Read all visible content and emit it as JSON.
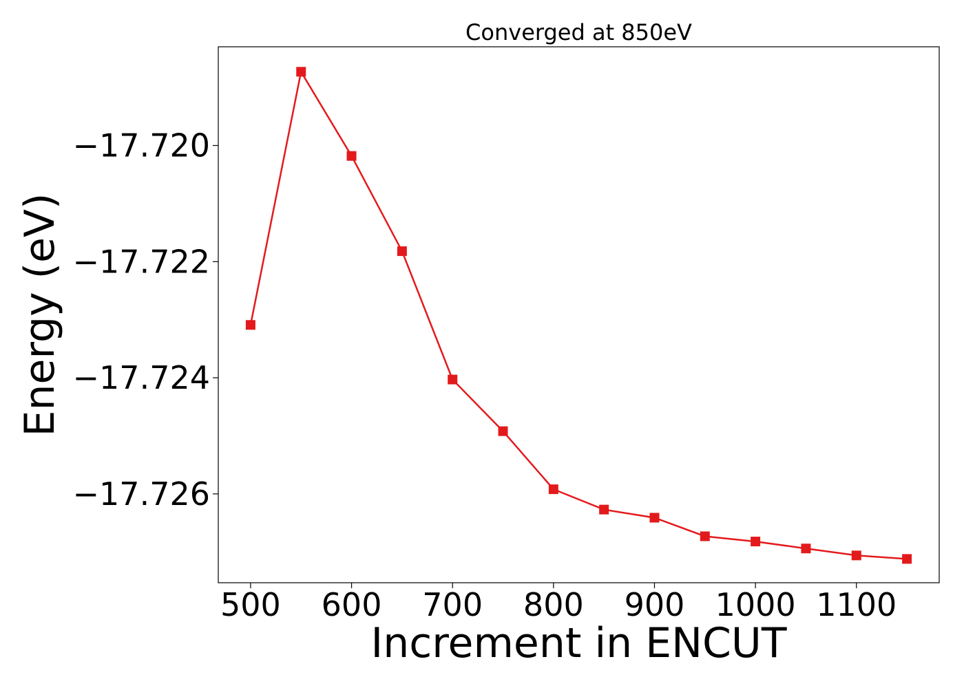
{
  "chart_data": {
    "type": "line",
    "title": "Converged at 850eV",
    "xlabel": "Increment in ENCUT",
    "ylabel": "Energy (eV)",
    "xlim": [
      468,
      1182
    ],
    "ylim": [
      -17.72753,
      -17.7183
    ],
    "x_ticks": [
      500,
      600,
      700,
      800,
      900,
      1000,
      1100
    ],
    "x_tick_labels": [
      "500",
      "600",
      "700",
      "800",
      "900",
      "1000",
      "1100"
    ],
    "y_ticks": [
      -17.72,
      -17.722,
      -17.724,
      -17.726
    ],
    "y_tick_labels": [
      "−17.720",
      "−17.722",
      "−17.724",
      "−17.726"
    ],
    "grid": false,
    "series": [
      {
        "color": "#e31a1c",
        "marker": "square",
        "x": [
          500,
          550,
          600,
          650,
          700,
          750,
          800,
          850,
          900,
          950,
          1000,
          1050,
          1100,
          1150
        ],
        "y": [
          -17.72309,
          -17.71873,
          -17.72018,
          -17.72182,
          -17.72403,
          -17.72492,
          -17.72592,
          -17.72627,
          -17.72641,
          -17.72673,
          -17.72682,
          -17.72694,
          -17.72706,
          -17.72712
        ]
      }
    ]
  }
}
